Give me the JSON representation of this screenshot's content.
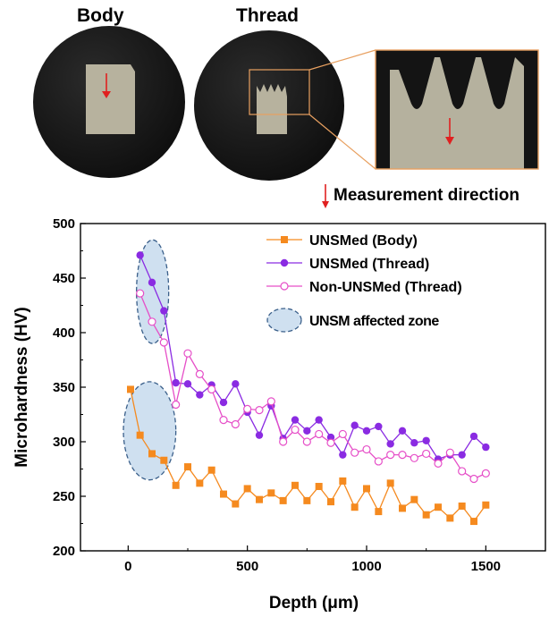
{
  "photos": {
    "body_label": "Body",
    "thread_label": "Thread",
    "direction_label": "Measurement direction"
  },
  "colors": {
    "body": "#F58A1F",
    "thread": "#8A2BE2",
    "non_unsm": "#E64FC8",
    "zone_fill": "#CFE0F0",
    "zone_stroke": "#3A5F8A",
    "arrow": "#E02020",
    "zoom_box": "#E8A060"
  },
  "chart_data": {
    "type": "line",
    "xlabel": "Depth (μm)",
    "ylabel": "Microhardness (HV)",
    "xlim": [
      -200,
      1750
    ],
    "ylim": [
      200,
      500
    ],
    "xticks": [
      0,
      500,
      1000,
      1500
    ],
    "yticks": [
      200,
      250,
      300,
      350,
      400,
      450,
      500
    ],
    "grid": false,
    "legend_position": "top-right",
    "series": [
      {
        "name": "UNSMed (Body)",
        "marker": "square-filled",
        "color_key": "body",
        "x": [
          10,
          50,
          100,
          150,
          200,
          250,
          300,
          350,
          400,
          450,
          500,
          550,
          600,
          650,
          700,
          750,
          800,
          850,
          900,
          950,
          1000,
          1050,
          1100,
          1150,
          1200,
          1250,
          1300,
          1350,
          1400,
          1450,
          1500
        ],
        "y": [
          348,
          306,
          289,
          283,
          260,
          277,
          262,
          274,
          252,
          243,
          257,
          247,
          253,
          246,
          260,
          246,
          259,
          245,
          264,
          240,
          257,
          236,
          262,
          239,
          247,
          233,
          240,
          230,
          241,
          227,
          242
        ]
      },
      {
        "name": "UNSMed (Thread)",
        "marker": "circle-filled",
        "color_key": "thread",
        "x": [
          50,
          100,
          150,
          200,
          250,
          300,
          350,
          400,
          450,
          500,
          550,
          600,
          650,
          700,
          750,
          800,
          850,
          900,
          950,
          1000,
          1050,
          1100,
          1150,
          1200,
          1250,
          1300,
          1350,
          1400,
          1450,
          1500
        ],
        "y": [
          471,
          446,
          420,
          354,
          353,
          343,
          352,
          336,
          353,
          327,
          306,
          333,
          303,
          320,
          310,
          320,
          304,
          288,
          315,
          310,
          314,
          298,
          310,
          299,
          301,
          284,
          288,
          288,
          305,
          295
        ]
      },
      {
        "name": "Non-UNSMed (Thread)",
        "marker": "circle-open",
        "color_key": "non_unsm",
        "x": [
          50,
          100,
          150,
          200,
          250,
          300,
          350,
          400,
          450,
          500,
          550,
          600,
          650,
          700,
          750,
          800,
          850,
          900,
          950,
          1000,
          1050,
          1100,
          1150,
          1200,
          1250,
          1300,
          1350,
          1400,
          1450,
          1500
        ],
        "y": [
          436,
          410,
          391,
          334,
          381,
          362,
          348,
          320,
          316,
          330,
          329,
          337,
          300,
          311,
          300,
          307,
          299,
          307,
          290,
          293,
          282,
          288,
          288,
          285,
          289,
          280,
          290,
          273,
          266,
          271
        ]
      }
    ],
    "zone_legend": "UNSM affected zone",
    "zones": [
      {
        "x": [
          35,
          170
        ],
        "y": [
          390,
          485
        ]
      },
      {
        "x": [
          -20,
          200
        ],
        "y": [
          265,
          355
        ]
      }
    ]
  }
}
